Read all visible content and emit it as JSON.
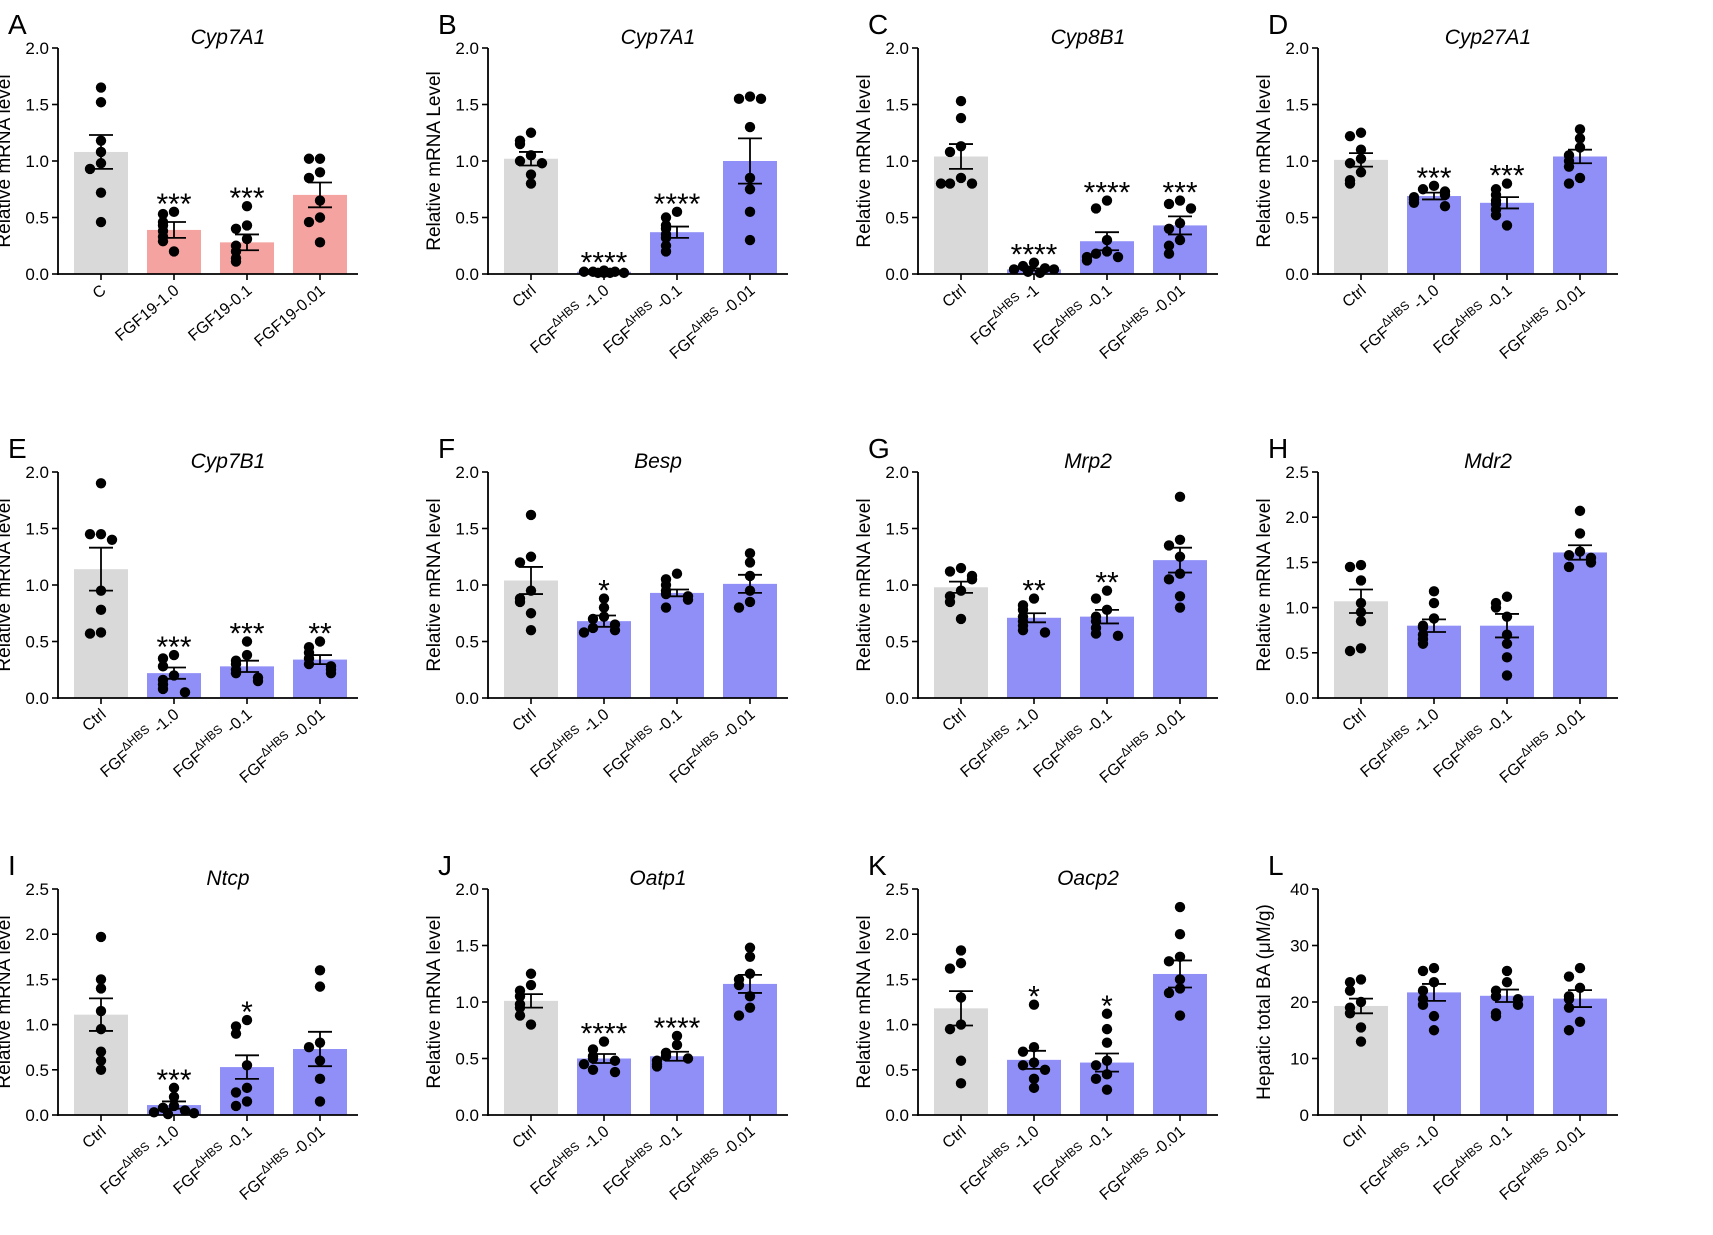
{
  "colors": {
    "ctrl": "#d9d9d9",
    "fgf19": "#f5a3a0",
    "hbs": "#8f8ff7",
    "dot": "#000000",
    "axis": "#000000"
  },
  "chart_data": [
    {
      "letter": "A",
      "type": "bar",
      "title": "Cyp7A1",
      "ylabel": "Relative mRNA level",
      "ylim": [
        0,
        2.0
      ],
      "yticks": [
        "0.0",
        "0.5",
        "1.0",
        "1.5",
        "2.0"
      ],
      "categories": [
        {
          "text": "C"
        },
        {
          "text": "FGF19-1.0"
        },
        {
          "text": "FGF19-0.1"
        },
        {
          "text": "FGF19-0.01"
        }
      ],
      "values": [
        1.08,
        0.39,
        0.28,
        0.7
      ],
      "errors": [
        0.15,
        0.07,
        0.07,
        0.11
      ],
      "colors": [
        "ctrl",
        "fgf19",
        "fgf19",
        "fgf19"
      ],
      "sig": [
        "",
        "***",
        "***",
        ""
      ],
      "points": [
        [
          1.65,
          1.52,
          1.18,
          1.08,
          0.98,
          0.93,
          0.72,
          0.46
        ],
        [
          0.55,
          0.53,
          0.46,
          0.43,
          0.38,
          0.33,
          0.29,
          0.2
        ],
        [
          0.6,
          0.43,
          0.4,
          0.31,
          0.25,
          0.2,
          0.14,
          0.11
        ],
        [
          1.02,
          1.02,
          0.9,
          0.85,
          0.65,
          0.5,
          0.46,
          0.28
        ]
      ]
    },
    {
      "letter": "B",
      "type": "bar",
      "title": "Cyp7A1",
      "ylabel": "Relative mRNA Level",
      "ylim": [
        0,
        2.0
      ],
      "yticks": [
        "0.0",
        "0.5",
        "1.0",
        "1.5",
        "2.0"
      ],
      "categories": [
        {
          "text": "Ctrl"
        },
        {
          "text": "FGF",
          "sup": "ΔHBS",
          "suffix": " -1.0"
        },
        {
          "text": "FGF",
          "sup": "ΔHBS",
          "suffix": " -0.1"
        },
        {
          "text": "FGF",
          "sup": "ΔHBS",
          "suffix": " -0.01"
        }
      ],
      "values": [
        1.02,
        0.02,
        0.37,
        1.0
      ],
      "errors": [
        0.06,
        0.01,
        0.05,
        0.2
      ],
      "colors": [
        "ctrl",
        "hbs",
        "hbs",
        "hbs"
      ],
      "sig": [
        "",
        "****",
        "****",
        ""
      ],
      "points": [
        [
          1.25,
          1.18,
          1.15,
          1.05,
          1.0,
          0.98,
          0.88,
          0.8
        ],
        [
          0.03,
          0.02,
          0.02,
          0.02,
          0.01,
          0.01,
          0.01,
          0.01
        ],
        [
          0.55,
          0.5,
          0.43,
          0.4,
          0.35,
          0.32,
          0.25,
          0.2
        ],
        [
          1.57,
          1.55,
          1.55,
          1.3,
          0.85,
          0.75,
          0.55,
          0.3
        ]
      ]
    },
    {
      "letter": "C",
      "type": "bar",
      "title": "Cyp8B1",
      "ylabel": "Relative mRNA level",
      "ylim": [
        0,
        2.0
      ],
      "yticks": [
        "0.0",
        "0.5",
        "1.0",
        "1.5",
        "2.0"
      ],
      "categories": [
        {
          "text": "Ctrl"
        },
        {
          "text": "FGF",
          "sup": "ΔHBS",
          "suffix": " -1"
        },
        {
          "text": "FGF",
          "sup": "ΔHBS",
          "suffix": " -0.1"
        },
        {
          "text": "FGF",
          "sup": "ΔHBS",
          "suffix": " -0.01"
        }
      ],
      "values": [
        1.04,
        0.04,
        0.29,
        0.43
      ],
      "errors": [
        0.11,
        0.01,
        0.08,
        0.08
      ],
      "colors": [
        "ctrl",
        "hbs",
        "hbs",
        "hbs"
      ],
      "sig": [
        "",
        "****",
        "****",
        "***"
      ],
      "points": [
        [
          1.53,
          1.38,
          1.13,
          1.08,
          0.85,
          0.8,
          0.8,
          0.8
        ],
        [
          0.1,
          0.07,
          0.05,
          0.04,
          0.04,
          0.03,
          0.02,
          0.01
        ],
        [
          0.65,
          0.58,
          0.3,
          0.2,
          0.18,
          0.15,
          0.15,
          0.12
        ],
        [
          0.65,
          0.62,
          0.58,
          0.45,
          0.4,
          0.3,
          0.25,
          0.18
        ]
      ]
    },
    {
      "letter": "D",
      "type": "bar",
      "title": "Cyp27A1",
      "ylabel": "Relative mRNA level",
      "ylim": [
        0,
        2.0
      ],
      "yticks": [
        "0.0",
        "0.5",
        "1.0",
        "1.5",
        "2.0"
      ],
      "categories": [
        {
          "text": "Ctrl"
        },
        {
          "text": "FGF",
          "sup": "ΔHBS",
          "suffix": " -1.0"
        },
        {
          "text": "FGF",
          "sup": "ΔHBS",
          "suffix": " -0.1"
        },
        {
          "text": "FGF",
          "sup": "ΔHBS",
          "suffix": " -0.01"
        }
      ],
      "values": [
        1.01,
        0.69,
        0.63,
        1.04
      ],
      "errors": [
        0.06,
        0.03,
        0.05,
        0.06
      ],
      "colors": [
        "ctrl",
        "hbs",
        "hbs",
        "hbs"
      ],
      "sig": [
        "",
        "***",
        "***",
        ""
      ],
      "points": [
        [
          1.25,
          1.22,
          1.1,
          1.02,
          0.98,
          0.9,
          0.83,
          0.8
        ],
        [
          0.78,
          0.75,
          0.73,
          0.7,
          0.68,
          0.66,
          0.63,
          0.6
        ],
        [
          0.8,
          0.75,
          0.7,
          0.65,
          0.62,
          0.57,
          0.52,
          0.43
        ],
        [
          1.28,
          1.2,
          1.12,
          1.05,
          1.0,
          0.95,
          0.85,
          0.8
        ]
      ]
    },
    {
      "letter": "E",
      "type": "bar",
      "title": "Cyp7B1",
      "ylabel": "Relative mRNA level",
      "ylim": [
        0,
        2.0
      ],
      "yticks": [
        "0.0",
        "0.5",
        "1.0",
        "1.5",
        "2.0"
      ],
      "categories": [
        {
          "text": "Ctrl"
        },
        {
          "text": "FGF",
          "sup": "ΔHBS",
          "suffix": " -1.0"
        },
        {
          "text": "FGF",
          "sup": "ΔHBS",
          "suffix": " -0.1"
        },
        {
          "text": "FGF",
          "sup": "ΔHBS",
          "suffix": " -0.01"
        }
      ],
      "values": [
        1.14,
        0.22,
        0.28,
        0.34
      ],
      "errors": [
        0.19,
        0.05,
        0.05,
        0.04
      ],
      "colors": [
        "ctrl",
        "hbs",
        "hbs",
        "hbs"
      ],
      "sig": [
        "",
        "***",
        "***",
        "**"
      ],
      "points": [
        [
          1.9,
          1.45,
          1.45,
          1.4,
          0.95,
          0.78,
          0.58,
          0.57
        ],
        [
          0.38,
          0.35,
          0.28,
          0.2,
          0.16,
          0.12,
          0.08,
          0.05
        ],
        [
          0.5,
          0.38,
          0.33,
          0.3,
          0.25,
          0.22,
          0.18,
          0.15
        ],
        [
          0.5,
          0.45,
          0.4,
          0.35,
          0.3,
          0.28,
          0.25,
          0.22
        ]
      ]
    },
    {
      "letter": "F",
      "type": "bar",
      "title": "Besp",
      "ylabel": "Relative mRNA level",
      "ylim": [
        0,
        2.0
      ],
      "yticks": [
        "0.0",
        "0.5",
        "1.0",
        "1.5",
        "2.0"
      ],
      "categories": [
        {
          "text": "Ctrl"
        },
        {
          "text": "FGF",
          "sup": "ΔHBS",
          "suffix": " -1.0"
        },
        {
          "text": "FGF",
          "sup": "ΔHBS",
          "suffix": " -0.1"
        },
        {
          "text": "FGF",
          "sup": "ΔHBS",
          "suffix": " -0.01"
        }
      ],
      "values": [
        1.04,
        0.68,
        0.93,
        1.01
      ],
      "errors": [
        0.12,
        0.05,
        0.03,
        0.08
      ],
      "colors": [
        "ctrl",
        "hbs",
        "hbs",
        "hbs"
      ],
      "sig": [
        "",
        "*",
        "",
        ""
      ],
      "points": [
        [
          1.62,
          1.25,
          1.2,
          0.95,
          0.88,
          0.85,
          0.75,
          0.6
        ],
        [
          0.88,
          0.8,
          0.72,
          0.7,
          0.65,
          0.62,
          0.6,
          0.58
        ],
        [
          1.1,
          1.05,
          1.0,
          0.95,
          0.92,
          0.9,
          0.87,
          0.8
        ],
        [
          1.28,
          1.2,
          1.08,
          0.95,
          0.85,
          0.8
        ]
      ]
    },
    {
      "letter": "G",
      "type": "bar",
      "title": "Mrp2",
      "ylabel": "Relative mRNA level",
      "ylim": [
        0,
        2.0
      ],
      "yticks": [
        "0.0",
        "0.5",
        "1.0",
        "1.5",
        "2.0"
      ],
      "categories": [
        {
          "text": "Ctrl"
        },
        {
          "text": "FGF",
          "sup": "ΔHBS",
          "suffix": " -1.0"
        },
        {
          "text": "FGF",
          "sup": "ΔHBS",
          "suffix": " -0.1"
        },
        {
          "text": "FGF",
          "sup": "ΔHBS",
          "suffix": " -0.01"
        }
      ],
      "values": [
        0.98,
        0.71,
        0.72,
        1.22
      ],
      "errors": [
        0.05,
        0.04,
        0.06,
        0.11
      ],
      "colors": [
        "ctrl",
        "hbs",
        "hbs",
        "hbs"
      ],
      "sig": [
        "",
        "**",
        "**",
        ""
      ],
      "points": [
        [
          1.15,
          1.12,
          1.08,
          1.05,
          0.95,
          0.9,
          0.85,
          0.7
        ],
        [
          0.88,
          0.82,
          0.78,
          0.72,
          0.68,
          0.64,
          0.6,
          0.58
        ],
        [
          0.95,
          0.88,
          0.78,
          0.72,
          0.68,
          0.62,
          0.57,
          0.55
        ],
        [
          1.78,
          1.4,
          1.35,
          1.25,
          1.1,
          1.05,
          0.9,
          0.8
        ]
      ]
    },
    {
      "letter": "H",
      "type": "bar",
      "title": "Mdr2",
      "ylabel": "Relative mRNA level",
      "ylim": [
        0,
        2.5
      ],
      "yticks": [
        "0.0",
        "0.5",
        "1.0",
        "1.5",
        "2.0",
        "2.5"
      ],
      "categories": [
        {
          "text": "Ctrl"
        },
        {
          "text": "FGF",
          "sup": "ΔHBS",
          "suffix": " -1.0"
        },
        {
          "text": "FGF",
          "sup": "ΔHBS",
          "suffix": " -0.1"
        },
        {
          "text": "FGF",
          "sup": "ΔHBS",
          "suffix": " -0.01"
        }
      ],
      "values": [
        1.07,
        0.8,
        0.8,
        1.61
      ],
      "errors": [
        0.13,
        0.07,
        0.13,
        0.08
      ],
      "colors": [
        "ctrl",
        "hbs",
        "hbs",
        "hbs"
      ],
      "sig": [
        "",
        "",
        "",
        ""
      ],
      "points": [
        [
          1.47,
          1.45,
          1.3,
          1.05,
          0.95,
          0.85,
          0.55,
          0.52
        ],
        [
          1.18,
          1.05,
          0.88,
          0.8,
          0.78,
          0.7,
          0.65,
          0.6
        ],
        [
          1.12,
          1.05,
          1.0,
          0.9,
          0.7,
          0.6,
          0.45,
          0.25
        ],
        [
          2.07,
          1.82,
          1.62,
          1.58,
          1.55,
          1.5,
          1.45
        ]
      ]
    },
    {
      "letter": "I",
      "type": "bar",
      "title": "Ntcp",
      "ylabel": "Relative mRNA level",
      "ylim": [
        0,
        2.5
      ],
      "yticks": [
        "0.0",
        "0.5",
        "1.0",
        "1.5",
        "2.0",
        "2.5"
      ],
      "categories": [
        {
          "text": "Ctrl"
        },
        {
          "text": "FGF",
          "sup": "ΔHBS",
          "suffix": " -1.0"
        },
        {
          "text": "FGF",
          "sup": "ΔHBS",
          "suffix": " -0.1"
        },
        {
          "text": "FGF",
          "sup": "ΔHBS",
          "suffix": " -0.01"
        }
      ],
      "values": [
        1.11,
        0.11,
        0.53,
        0.73
      ],
      "errors": [
        0.18,
        0.04,
        0.13,
        0.19
      ],
      "colors": [
        "ctrl",
        "hbs",
        "hbs",
        "hbs"
      ],
      "sig": [
        "",
        "***",
        "*",
        ""
      ],
      "points": [
        [
          1.97,
          1.5,
          1.4,
          1.15,
          0.95,
          0.7,
          0.6,
          0.5
        ],
        [
          0.3,
          0.2,
          0.1,
          0.08,
          0.05,
          0.03,
          0.02,
          0.01
        ],
        [
          1.05,
          0.98,
          0.9,
          0.55,
          0.3,
          0.25,
          0.15,
          0.1
        ],
        [
          1.6,
          1.42,
          0.8,
          0.75,
          0.6,
          0.4,
          0.15
        ]
      ]
    },
    {
      "letter": "J",
      "type": "bar",
      "title": "Oatp1",
      "ylabel": "Relative mRNA level",
      "ylim": [
        0,
        2.0
      ],
      "yticks": [
        "0.0",
        "0.5",
        "1.0",
        "1.5",
        "2.0"
      ],
      "categories": [
        {
          "text": "Ctrl"
        },
        {
          "text": "FGF",
          "sup": "ΔHBS",
          "suffix": " -1.0"
        },
        {
          "text": "FGF",
          "sup": "ΔHBS",
          "suffix": " -0.1"
        },
        {
          "text": "FGF",
          "sup": "ΔHBS",
          "suffix": " -0.01"
        }
      ],
      "values": [
        1.01,
        0.5,
        0.52,
        1.16
      ],
      "errors": [
        0.06,
        0.04,
        0.04,
        0.08
      ],
      "colors": [
        "ctrl",
        "hbs",
        "hbs",
        "hbs"
      ],
      "sig": [
        "",
        "****",
        "****",
        ""
      ],
      "points": [
        [
          1.25,
          1.15,
          1.1,
          1.05,
          0.98,
          0.95,
          0.88,
          0.8
        ],
        [
          0.65,
          0.58,
          0.52,
          0.5,
          0.48,
          0.45,
          0.4,
          0.38
        ],
        [
          0.7,
          0.62,
          0.55,
          0.52,
          0.5,
          0.48,
          0.45,
          0.43
        ],
        [
          1.48,
          1.4,
          1.25,
          1.2,
          1.15,
          1.05,
          0.95,
          0.88
        ]
      ]
    },
    {
      "letter": "K",
      "type": "bar",
      "title": "Oacp2",
      "ylabel": "Relative mRNA level",
      "ylim": [
        0,
        2.5
      ],
      "yticks": [
        "0.0",
        "0.5",
        "1.0",
        "1.5",
        "2.0",
        "2.5"
      ],
      "categories": [
        {
          "text": "Ctrl"
        },
        {
          "text": "FGF",
          "sup": "ΔHBS",
          "suffix": " -1.0"
        },
        {
          "text": "FGF",
          "sup": "ΔHBS",
          "suffix": " -0.1"
        },
        {
          "text": "FGF",
          "sup": "ΔHBS",
          "suffix": " -0.01"
        }
      ],
      "values": [
        1.18,
        0.61,
        0.58,
        1.56
      ],
      "errors": [
        0.19,
        0.1,
        0.1,
        0.15
      ],
      "colors": [
        "ctrl",
        "hbs",
        "hbs",
        "hbs"
      ],
      "sig": [
        "",
        "*",
        "*",
        ""
      ],
      "points": [
        [
          1.82,
          1.68,
          1.62,
          1.3,
          1.0,
          0.95,
          0.6,
          0.35
        ],
        [
          1.22,
          0.75,
          0.7,
          0.58,
          0.55,
          0.5,
          0.4,
          0.3
        ],
        [
          1.12,
          0.95,
          0.8,
          0.6,
          0.55,
          0.45,
          0.4,
          0.28
        ],
        [
          2.3,
          2.0,
          1.75,
          1.7,
          1.5,
          1.4,
          1.35,
          1.1
        ]
      ]
    },
    {
      "letter": "L",
      "type": "bar",
      "title": "",
      "ylabel": "Hepatic total BA (μM/g)",
      "ylim": [
        0,
        40
      ],
      "yticks": [
        "0",
        "10",
        "20",
        "30",
        "40"
      ],
      "categories": [
        {
          "text": "Ctrl"
        },
        {
          "text": "FGF",
          "sup": "ΔHBS",
          "suffix": " -1.0"
        },
        {
          "text": "FGF",
          "sup": "ΔHBS",
          "suffix": " -0.1"
        },
        {
          "text": "FGF",
          "sup": "ΔHBS",
          "suffix": " -0.01"
        }
      ],
      "values": [
        19.3,
        21.7,
        21.1,
        20.6
      ],
      "errors": [
        1.3,
        1.5,
        1.1,
        1.5
      ],
      "colors": [
        "ctrl",
        "hbs",
        "hbs",
        "hbs"
      ],
      "sig": [
        "",
        "",
        "",
        ""
      ],
      "points": [
        [
          24.0,
          23.5,
          22.0,
          20.0,
          19.0,
          18.0,
          15.5,
          13.0
        ],
        [
          26.0,
          25.5,
          23.5,
          22.0,
          20.5,
          19.5,
          17.5,
          15.0
        ],
        [
          25.5,
          23.5,
          22.0,
          21.0,
          20.5,
          19.5,
          18.0,
          17.5
        ],
        [
          26.0,
          24.5,
          22.5,
          21.0,
          20.5,
          19.0,
          16.5,
          15.0
        ]
      ]
    }
  ]
}
